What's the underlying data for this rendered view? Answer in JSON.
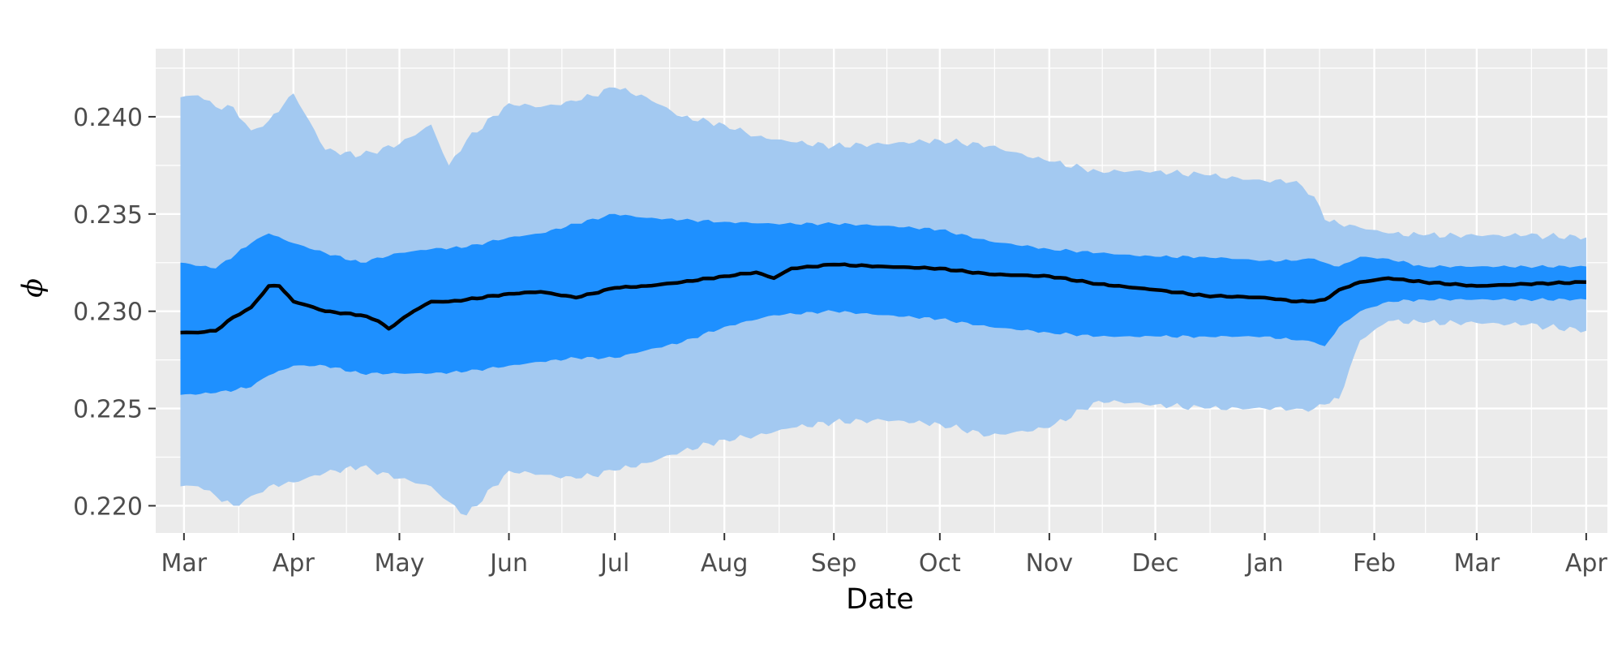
{
  "chart_data": {
    "type": "area",
    "xlabel": "Date",
    "ylabel": "ϕ",
    "ylim": [
      0.2186,
      0.2435
    ],
    "xlim": [
      "2023-02-21",
      "2024-04-07"
    ],
    "grid": true,
    "background": "#ebebeb",
    "x_ticks": [
      {
        "date": "2023-03-01",
        "label": "Mar"
      },
      {
        "date": "2023-04-01",
        "label": "Apr"
      },
      {
        "date": "2023-05-01",
        "label": "May"
      },
      {
        "date": "2023-06-01",
        "label": "Jun"
      },
      {
        "date": "2023-07-01",
        "label": "Jul"
      },
      {
        "date": "2023-08-01",
        "label": "Aug"
      },
      {
        "date": "2023-09-01",
        "label": "Sep"
      },
      {
        "date": "2023-10-01",
        "label": "Oct"
      },
      {
        "date": "2023-11-01",
        "label": "Nov"
      },
      {
        "date": "2023-12-01",
        "label": "Dec"
      },
      {
        "date": "2024-01-01",
        "label": "Jan"
      },
      {
        "date": "2024-02-01",
        "label": "Feb"
      },
      {
        "date": "2024-03-01",
        "label": "Mar"
      },
      {
        "date": "2024-04-01",
        "label": "Apr"
      }
    ],
    "y_ticks": [
      {
        "value": 0.22,
        "label": "0.220"
      },
      {
        "value": 0.225,
        "label": "0.225"
      },
      {
        "value": 0.23,
        "label": "0.230"
      },
      {
        "value": 0.235,
        "label": "0.235"
      },
      {
        "value": 0.24,
        "label": "0.240"
      }
    ],
    "series": [
      {
        "kind": "band",
        "color": "#a3c9f1",
        "dates": [
          "2023-02-28",
          "2023-03-05",
          "2023-03-10",
          "2023-03-15",
          "2023-03-20",
          "2023-03-25",
          "2023-04-01",
          "2023-04-10",
          "2023-04-20",
          "2023-05-01",
          "2023-05-10",
          "2023-05-15",
          "2023-05-20",
          "2023-06-01",
          "2023-06-10",
          "2023-06-20",
          "2023-07-01",
          "2023-07-10",
          "2023-07-20",
          "2023-08-01",
          "2023-08-10",
          "2023-08-20",
          "2023-09-01",
          "2023-09-15",
          "2023-10-01",
          "2023-10-15",
          "2023-11-01",
          "2023-11-15",
          "2023-12-01",
          "2023-12-15",
          "2024-01-01",
          "2024-01-10",
          "2024-01-15",
          "2024-01-18",
          "2024-01-22",
          "2024-01-28",
          "2024-02-05",
          "2024-02-15",
          "2024-03-01",
          "2024-03-15",
          "2024-04-01"
        ],
        "upper": [
          0.241,
          0.2411,
          0.2405,
          0.2405,
          0.2393,
          0.2398,
          0.2412,
          0.2383,
          0.238,
          0.2386,
          0.2396,
          0.2375,
          0.2388,
          0.2407,
          0.2405,
          0.2408,
          0.2415,
          0.241,
          0.24,
          0.2396,
          0.239,
          0.2387,
          0.2385,
          0.2386,
          0.2388,
          0.2385,
          0.2377,
          0.2372,
          0.2372,
          0.237,
          0.2367,
          0.2367,
          0.2359,
          0.2347,
          0.2345,
          0.2343,
          0.234,
          0.2339,
          0.2339,
          0.2339,
          0.2338
        ],
        "lower": [
          0.221,
          0.221,
          0.2205,
          0.22,
          0.2205,
          0.221,
          0.2212,
          0.2217,
          0.222,
          0.2214,
          0.221,
          0.2202,
          0.2195,
          0.2218,
          0.2216,
          0.2214,
          0.2218,
          0.2222,
          0.2228,
          0.2234,
          0.2236,
          0.224,
          0.2243,
          0.2244,
          0.2242,
          0.2236,
          0.224,
          0.2254,
          0.2252,
          0.225,
          0.225,
          0.225,
          0.225,
          0.2252,
          0.2255,
          0.2285,
          0.2295,
          0.2294,
          0.2294,
          0.2293,
          0.229
        ]
      },
      {
        "kind": "band",
        "color": "#1e90ff",
        "dates": [
          "2023-02-28",
          "2023-03-10",
          "2023-03-20",
          "2023-03-25",
          "2023-04-01",
          "2023-04-10",
          "2023-04-20",
          "2023-05-01",
          "2023-05-10",
          "2023-05-20",
          "2023-06-01",
          "2023-06-10",
          "2023-06-20",
          "2023-07-01",
          "2023-07-10",
          "2023-07-20",
          "2023-08-01",
          "2023-08-15",
          "2023-09-01",
          "2023-09-15",
          "2023-10-01",
          "2023-10-15",
          "2023-11-01",
          "2023-11-15",
          "2023-12-01",
          "2023-12-15",
          "2024-01-01",
          "2024-01-10",
          "2024-01-15",
          "2024-01-18",
          "2024-01-22",
          "2024-01-28",
          "2024-02-05",
          "2024-02-15",
          "2024-03-01",
          "2024-03-15",
          "2024-04-01"
        ],
        "upper": [
          0.2325,
          0.2322,
          0.2335,
          0.234,
          0.2335,
          0.233,
          0.2325,
          0.233,
          0.2332,
          0.2333,
          0.2338,
          0.234,
          0.2345,
          0.235,
          0.2348,
          0.2347,
          0.2346,
          0.2345,
          0.2345,
          0.2344,
          0.2342,
          0.2336,
          0.2332,
          0.233,
          0.2328,
          0.2328,
          0.2326,
          0.2326,
          0.2327,
          0.2325,
          0.2323,
          0.2328,
          0.2327,
          0.2323,
          0.2323,
          0.2323,
          0.2323
        ],
        "lower": [
          0.2257,
          0.2258,
          0.2261,
          0.2267,
          0.2272,
          0.2272,
          0.2268,
          0.2268,
          0.2268,
          0.2269,
          0.2272,
          0.2274,
          0.2276,
          0.2276,
          0.228,
          0.2284,
          0.2292,
          0.2298,
          0.23,
          0.2298,
          0.2296,
          0.2292,
          0.2289,
          0.2287,
          0.2287,
          0.2287,
          0.2287,
          0.2285,
          0.2284,
          0.2282,
          0.2292,
          0.23,
          0.2305,
          0.2306,
          0.2306,
          0.2306,
          0.2306
        ]
      },
      {
        "kind": "line",
        "color": "#000000",
        "dates": [
          "2023-02-28",
          "2023-03-05",
          "2023-03-10",
          "2023-03-15",
          "2023-03-20",
          "2023-03-25",
          "2023-03-28",
          "2023-04-01",
          "2023-04-05",
          "2023-04-10",
          "2023-04-20",
          "2023-04-25",
          "2023-04-28",
          "2023-05-01",
          "2023-05-05",
          "2023-05-10",
          "2023-05-15",
          "2023-05-20",
          "2023-06-01",
          "2023-06-10",
          "2023-06-20",
          "2023-07-01",
          "2023-07-10",
          "2023-07-20",
          "2023-08-01",
          "2023-08-10",
          "2023-08-15",
          "2023-08-20",
          "2023-09-01",
          "2023-09-15",
          "2023-10-01",
          "2023-10-15",
          "2023-11-01",
          "2023-11-15",
          "2023-12-01",
          "2023-12-15",
          "2024-01-01",
          "2024-01-10",
          "2024-01-15",
          "2024-01-18",
          "2024-01-22",
          "2024-01-28",
          "2024-02-05",
          "2024-02-15",
          "2024-03-01",
          "2024-03-15",
          "2024-04-01"
        ],
        "values": [
          0.2289,
          0.2289,
          0.229,
          0.2297,
          0.2302,
          0.2313,
          0.2313,
          0.2305,
          0.2303,
          0.23,
          0.2298,
          0.2295,
          0.2291,
          0.2295,
          0.23,
          0.2305,
          0.2305,
          0.2306,
          0.2309,
          0.231,
          0.2307,
          0.2312,
          0.2313,
          0.2315,
          0.2318,
          0.232,
          0.2317,
          0.2322,
          0.2324,
          0.2323,
          0.2322,
          0.2319,
          0.2318,
          0.2314,
          0.2311,
          0.2308,
          0.2307,
          0.2305,
          0.2305,
          0.2306,
          0.2311,
          0.2315,
          0.2317,
          0.2315,
          0.2313,
          0.2314,
          0.2315
        ]
      }
    ]
  }
}
